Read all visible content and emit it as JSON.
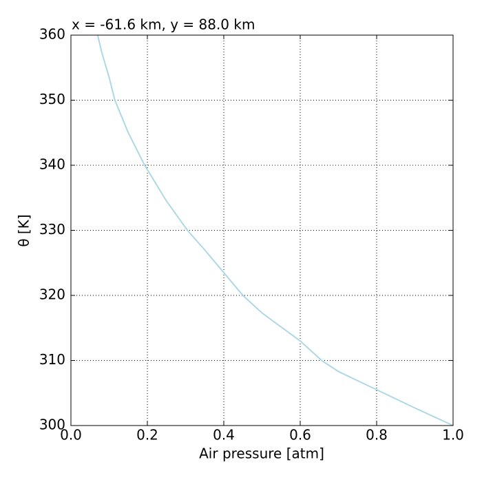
{
  "chart_data": {
    "type": "line",
    "title": "x = -61.6 km, y = 88.0 km",
    "x_label": "Air pressure [atm]",
    "y_label": "θ [K]",
    "x": [
      0.07,
      0.08,
      0.1,
      0.115,
      0.15,
      0.193,
      0.25,
      0.305,
      0.35,
      0.4,
      0.45,
      0.5,
      0.6,
      0.656,
      0.7,
      0.8,
      0.9,
      1.0
    ],
    "series": [
      {
        "name": "θ",
        "color": "#add8e6",
        "values": [
          360,
          357.5,
          353.5,
          350,
          345,
          340,
          334.5,
          330,
          327,
          323.5,
          320,
          317.3,
          313,
          310,
          308.3,
          305.5,
          302.7,
          300
        ]
      }
    ],
    "xlim": [
      0,
      1
    ],
    "ylim": [
      300,
      360
    ],
    "xticks": [
      {
        "value": 0,
        "label": "0.0"
      },
      0.2,
      0.4,
      0.6,
      0.8,
      {
        "value": 1,
        "label": "1.0"
      }
    ],
    "yticks": [
      300,
      310,
      320,
      330,
      340,
      350,
      360
    ],
    "grid": true
  }
}
